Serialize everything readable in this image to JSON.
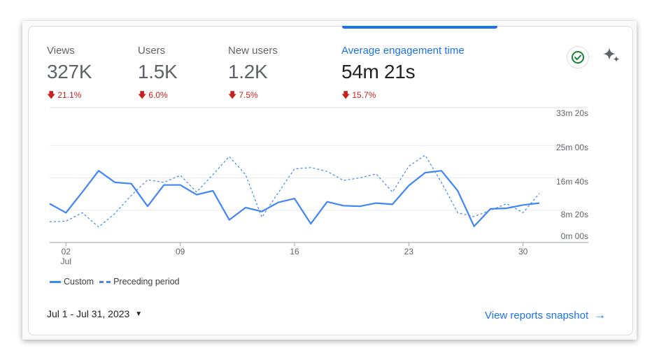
{
  "metrics": [
    {
      "label": "Views",
      "value": "327K",
      "delta": "21.1%",
      "direction": "down"
    },
    {
      "label": "Users",
      "value": "1.5K",
      "delta": "6.0%",
      "direction": "down"
    },
    {
      "label": "New users",
      "value": "1.2K",
      "delta": "7.5%",
      "direction": "down"
    },
    {
      "label": "Average engagement time",
      "value": "54m 21s",
      "delta": "15.7%",
      "direction": "down",
      "selected": true
    }
  ],
  "icons": {
    "status": "check-circle-icon",
    "insights": "sparkle-icon",
    "delta_arrow": "arrow-down-icon",
    "date_caret": "caret-down-icon",
    "link_arrow": "arrow-right-icon"
  },
  "colors": {
    "accent": "#1a73e8",
    "series": "#4285f4",
    "negative": "#c5221f",
    "status_check": "#188038"
  },
  "chart_data": {
    "type": "line",
    "x": [
      "Jul 1",
      "Jul 2",
      "Jul 3",
      "Jul 4",
      "Jul 5",
      "Jul 6",
      "Jul 7",
      "Jul 8",
      "Jul 9",
      "Jul 10",
      "Jul 11",
      "Jul 12",
      "Jul 13",
      "Jul 14",
      "Jul 15",
      "Jul 16",
      "Jul 17",
      "Jul 18",
      "Jul 19",
      "Jul 20",
      "Jul 21",
      "Jul 22",
      "Jul 23",
      "Jul 24",
      "Jul 25",
      "Jul 26",
      "Jul 27",
      "Jul 28",
      "Jul 29",
      "Jul 30",
      "Jul 31"
    ],
    "x_tick_labels": [
      {
        "index": 1,
        "label": "02",
        "sub": "Jul"
      },
      {
        "index": 8,
        "label": "09",
        "sub": ""
      },
      {
        "index": 15,
        "label": "16",
        "sub": ""
      },
      {
        "index": 22,
        "label": "23",
        "sub": ""
      },
      {
        "index": 29,
        "label": "30",
        "sub": ""
      }
    ],
    "y_unit": "seconds",
    "y_tick_labels": [
      {
        "value": 0,
        "label": "0m 00s"
      },
      {
        "value": 500,
        "label": "8m 20s"
      },
      {
        "value": 1000,
        "label": "16m 40s"
      },
      {
        "value": 1500,
        "label": "25m 00s"
      },
      {
        "value": 2000,
        "label": "33m 20s"
      }
    ],
    "ylim": [
      0,
      2000
    ],
    "grid": true,
    "legend_position": "bottom-left",
    "series": [
      {
        "name": "Custom",
        "style": "solid",
        "values": [
          600,
          460,
          780,
          1110,
          930,
          910,
          560,
          890,
          890,
          740,
          800,
          350,
          540,
          480,
          620,
          680,
          290,
          630,
          570,
          560,
          610,
          590,
          880,
          1080,
          1110,
          800,
          250,
          520,
          530,
          580,
          610
        ]
      },
      {
        "name": "Preceding period",
        "style": "dashed",
        "values": [
          320,
          330,
          460,
          240,
          450,
          730,
          970,
          930,
          1040,
          780,
          1050,
          1330,
          1050,
          390,
          770,
          1140,
          1160,
          1100,
          960,
          1000,
          1060,
          780,
          1180,
          1350,
          930,
          460,
          400,
          500,
          600,
          460,
          760
        ]
      }
    ]
  },
  "legend": {
    "custom": "Custom",
    "preceding": "Preceding period"
  },
  "date_range": {
    "label": "Jul 1 - Jul 31, 2023"
  },
  "view_link": {
    "label": "View reports snapshot"
  }
}
